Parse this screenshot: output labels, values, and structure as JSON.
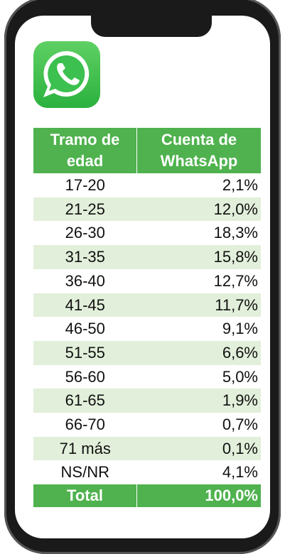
{
  "table": {
    "header": [
      "Tramo de edad",
      "Cuenta de WhatsApp"
    ],
    "rows": [
      [
        "17-20",
        "2,1%"
      ],
      [
        "21-25",
        "12,0%"
      ],
      [
        "26-30",
        "18,3%"
      ],
      [
        "31-35",
        "15,8%"
      ],
      [
        "36-40",
        "12,7%"
      ],
      [
        "41-45",
        "11,7%"
      ],
      [
        "46-50",
        "9,1%"
      ],
      [
        "51-55",
        "6,6%"
      ],
      [
        "56-60",
        "5,0%"
      ],
      [
        "61-65",
        "1,9%"
      ],
      [
        "66-70",
        "0,7%"
      ],
      [
        "71 más",
        "0,1%"
      ],
      [
        "NS/NR",
        "4,1%"
      ]
    ],
    "total": [
      "Total",
      "100,0%"
    ]
  }
}
